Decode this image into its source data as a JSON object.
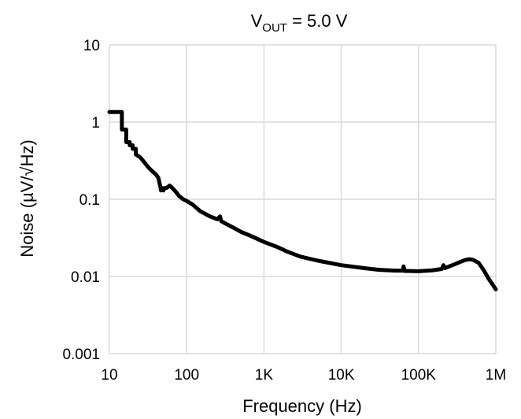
{
  "chart_data": {
    "type": "line",
    "title_main": "V",
    "title_sub": "OUT",
    "title_rest": " = 5.0 V",
    "xlabel": "Frequency (Hz)",
    "ylabel": "Noise (µV/√Hz)",
    "x_scale": "log",
    "y_scale": "log",
    "xlim": [
      10,
      1000000
    ],
    "ylim": [
      0.001,
      10
    ],
    "x_ticks": [
      10,
      100,
      1000,
      10000,
      100000,
      1000000
    ],
    "x_tick_labels": [
      "10",
      "100",
      "1K",
      "10K",
      "100K",
      "1M"
    ],
    "y_ticks": [
      0.001,
      0.01,
      0.1,
      1,
      10
    ],
    "y_tick_labels": [
      "0.001",
      "0.01",
      "0.1",
      "1",
      "10"
    ],
    "grid": true,
    "line_color": "#000000",
    "grid_color": "#d9d9d9",
    "series": [
      {
        "x": [
          10,
          14.5,
          14.5,
          16.5,
          16.5,
          18.3,
          18.3,
          20,
          20,
          22,
          22,
          25,
          27,
          30,
          33,
          36,
          40,
          43,
          46,
          46.5,
          48,
          50,
          52,
          55,
          60,
          63,
          70,
          80,
          90,
          100,
          120,
          150,
          200,
          250,
          270,
          280,
          300,
          400,
          500,
          700,
          1000,
          1500,
          2000,
          3000,
          5000,
          10000,
          20000,
          30000,
          50000,
          63000,
          64000,
          66000,
          70000,
          100000,
          150000,
          200000,
          210000,
          220000,
          250000,
          300000,
          350000,
          400000,
          450000,
          500000,
          600000,
          700000,
          800000,
          1000000
        ],
        "y": [
          1.35,
          1.35,
          0.8,
          0.8,
          0.55,
          0.55,
          0.5,
          0.5,
          0.45,
          0.45,
          0.38,
          0.35,
          0.32,
          0.28,
          0.25,
          0.23,
          0.21,
          0.19,
          0.14,
          0.13,
          0.14,
          0.13,
          0.14,
          0.14,
          0.15,
          0.145,
          0.13,
          0.11,
          0.1,
          0.095,
          0.085,
          0.07,
          0.06,
          0.055,
          0.06,
          0.052,
          0.05,
          0.043,
          0.038,
          0.033,
          0.028,
          0.024,
          0.021,
          0.018,
          0.016,
          0.014,
          0.0128,
          0.0122,
          0.0119,
          0.0119,
          0.0135,
          0.0118,
          0.0118,
          0.0117,
          0.012,
          0.0125,
          0.014,
          0.0128,
          0.0135,
          0.0145,
          0.0155,
          0.0163,
          0.0167,
          0.0165,
          0.015,
          0.012,
          0.0095,
          0.0068
        ]
      }
    ]
  }
}
